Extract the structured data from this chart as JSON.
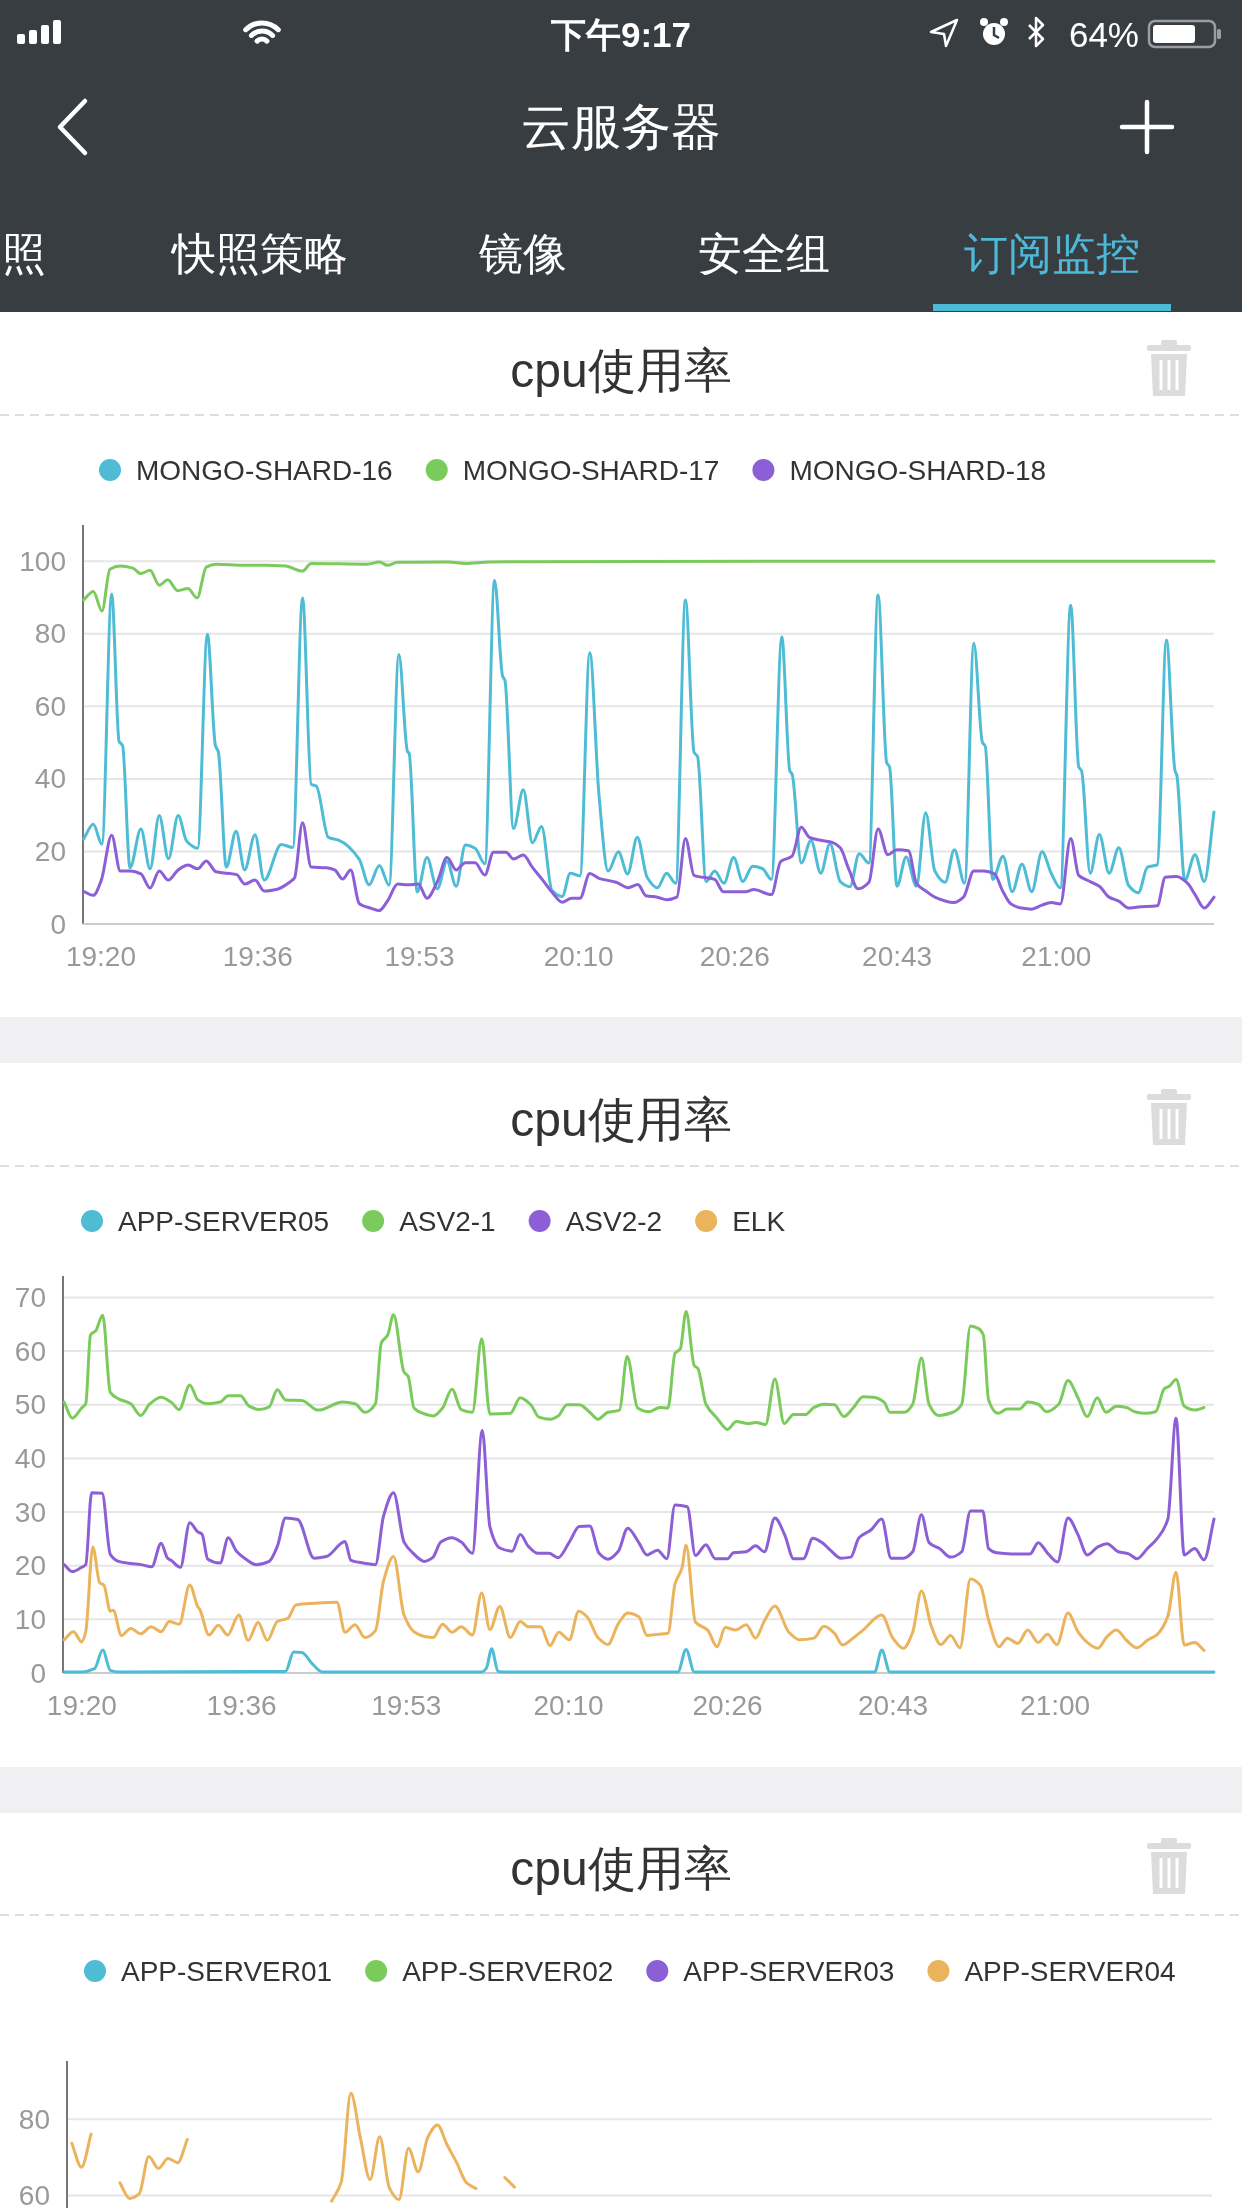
{
  "chart_data": [
    {
      "type": "other",
      "title": "云服务器",
      "annotations": [
        "下午9:17",
        "64%",
        "照",
        "快照策略",
        "镜像",
        "安全组",
        "订阅监控"
      ]
    },
    {
      "type": "line",
      "title": "cpu使用率",
      "legend": "top",
      "grid": "y",
      "xlim": [
        19.302,
        21.275
      ],
      "ylim": [
        0,
        110
      ],
      "yticks": [
        0,
        20,
        40,
        60,
        80,
        100
      ],
      "xticks": [
        {
          "value": 19.3333,
          "label": "19:20"
        },
        {
          "value": 19.6069,
          "label": "19:36"
        },
        {
          "value": 19.8889,
          "label": "19:53"
        },
        {
          "value": 20.1667,
          "label": "20:10"
        },
        {
          "value": 20.4389,
          "label": "20:26"
        },
        {
          "value": 20.7222,
          "label": "20:43"
        },
        {
          "value": 21.0,
          "label": "21:00"
        }
      ],
      "series": [
        {
          "name": "MONGO-SHARD-16",
          "color": "#4fbcd6",
          "x": [
            19.303,
            19.32,
            19.335,
            19.352,
            19.365,
            19.371,
            19.384,
            19.403,
            19.419,
            19.435,
            19.451,
            19.468,
            19.483,
            19.502,
            19.519,
            19.533,
            19.538,
            19.552,
            19.569,
            19.584,
            19.602,
            19.618,
            19.648,
            19.668,
            19.685,
            19.7,
            19.709,
            19.73,
            19.748,
            19.784,
            19.801,
            19.819,
            19.836,
            19.853,
            19.868,
            19.871,
            19.885,
            19.902,
            19.92,
            19.937,
            19.953,
            19.969,
            19.986,
            20.003,
            20.02,
            20.034,
            20.038,
            20.053,
            20.07,
            20.086,
            20.102,
            20.12,
            20.138,
            20.152,
            20.169,
            20.186,
            20.202,
            20.218,
            20.236,
            20.252,
            20.269,
            20.286,
            20.304,
            20.32,
            20.336,
            20.353,
            20.368,
            20.374,
            20.389,
            20.404,
            20.42,
            20.437,
            20.453,
            20.47,
            20.487,
            20.503,
            20.521,
            20.535,
            20.539,
            20.555,
            20.572,
            20.589,
            20.605,
            20.623,
            20.64,
            20.656,
            20.673,
            20.689,
            20.704,
            20.709,
            20.722,
            20.738,
            20.756,
            20.772,
            20.788,
            20.806,
            20.822,
            20.84,
            20.856,
            20.871,
            20.876,
            20.889,
            20.907,
            20.923,
            20.94,
            20.957,
            20.975,
            20.991,
            21.007,
            21.025,
            21.039,
            21.044,
            21.059,
            21.075,
            21.092,
            21.109,
            21.126,
            21.143,
            21.159,
            21.176,
            21.192,
            21.207,
            21.21,
            21.224,
            21.242,
            21.258,
            21.275
          ],
          "values": [
            23.4,
            27.5,
            22.0,
            91.0,
            50.3,
            49.2,
            15.5,
            26.2,
            15.2,
            29.9,
            18.0,
            29.9,
            22.8,
            20.9,
            79.9,
            49.2,
            47.5,
            15.7,
            25.6,
            14.9,
            24.6,
            12.1,
            21.9,
            21.1,
            89.9,
            38.5,
            38.0,
            23.9,
            23.1,
            17.8,
            10.8,
            16.1,
            10.7,
            74.3,
            47.6,
            47.0,
            8.8,
            18.3,
            9.7,
            17.3,
            10.4,
            21.8,
            20.9,
            16.6,
            94.7,
            68.3,
            67.2,
            26.3,
            37.0,
            22.4,
            26.9,
            9.3,
            7.6,
            14.0,
            13.3,
            74.8,
            35.8,
            14.6,
            19.9,
            13.8,
            23.9,
            12.9,
            10.0,
            14.0,
            11.2,
            89.3,
            47.3,
            46.2,
            11.7,
            14.6,
            11.2,
            18.3,
            11.7,
            15.9,
            15.3,
            12.3,
            79.2,
            42.2,
            41.3,
            16.8,
            23.0,
            14.0,
            22.1,
            11.7,
            10.3,
            19.4,
            16.8,
            90.7,
            44.5,
            43.3,
            10.4,
            18.5,
            10.4,
            30.7,
            14.6,
            11.5,
            20.5,
            11.2,
            77.4,
            50.1,
            49.0,
            12.3,
            18.7,
            8.9,
            16.5,
            8.9,
            19.9,
            14.0,
            10.0,
            87.9,
            43.3,
            42.2,
            14.0,
            24.7,
            14.0,
            21.0,
            10.6,
            8.6,
            15.7,
            16.3,
            78.3,
            42.2,
            41.1,
            12.0,
            19.1,
            11.7,
            30.9
          ]
        },
        {
          "name": "MONGO-SHARD-17",
          "color": "#7bcb5c",
          "x": [
            19.303,
            19.32,
            19.335,
            19.349,
            19.367,
            19.389,
            19.403,
            19.419,
            19.435,
            19.45,
            19.467,
            19.485,
            19.501,
            19.517,
            19.534,
            19.584,
            19.62,
            19.655,
            19.685,
            19.7,
            19.798,
            19.819,
            19.833,
            19.851,
            19.94,
            19.969,
            20.011,
            20.083,
            20.6,
            21.275
          ],
          "values": [
            89.3,
            91.7,
            86.3,
            97.8,
            98.7,
            98.1,
            96.6,
            97.5,
            93.4,
            94.9,
            91.9,
            92.5,
            89.9,
            98.4,
            99.2,
            98.9,
            98.9,
            98.7,
            97.3,
            99.4,
            99.2,
            99.8,
            98.9,
            99.7,
            99.8,
            99.4,
            99.8,
            99.9,
            100,
            100
          ]
        },
        {
          "name": "MONGO-SHARD-18",
          "color": "#8c5fd6",
          "x": [
            19.303,
            19.32,
            19.334,
            19.352,
            19.367,
            19.385,
            19.403,
            19.419,
            19.435,
            19.451,
            19.468,
            19.485,
            19.502,
            19.517,
            19.534,
            19.57,
            19.584,
            19.602,
            19.618,
            19.641,
            19.663,
            19.671,
            19.685,
            19.7,
            19.727,
            19.741,
            19.755,
            19.769,
            19.784,
            19.805,
            19.819,
            19.833,
            19.851,
            19.869,
            19.887,
            19.902,
            19.92,
            19.937,
            19.953,
            19.969,
            19.986,
            20.003,
            20.018,
            20.04,
            20.053,
            20.07,
            20.086,
            20.104,
            20.12,
            20.138,
            20.154,
            20.169,
            20.186,
            20.202,
            20.232,
            20.253,
            20.27,
            20.284,
            20.304,
            20.32,
            20.338,
            20.353,
            20.368,
            20.404,
            20.419,
            20.458,
            20.472,
            20.503,
            20.519,
            20.539,
            20.555,
            20.569,
            20.591,
            20.609,
            20.623,
            20.638,
            20.654,
            20.673,
            20.689,
            20.706,
            20.722,
            20.742,
            20.756,
            20.774,
            20.788,
            20.821,
            20.838,
            20.856,
            20.874,
            20.892,
            20.907,
            20.921,
            20.939,
            20.957,
            20.975,
            20.991,
            21.007,
            21.025,
            21.039,
            21.059,
            21.075,
            21.092,
            21.109,
            21.126,
            21.143,
            21.176,
            21.19,
            21.21,
            21.229,
            21.242,
            21.258,
            21.275
          ],
          "values": [
            9.0,
            7.9,
            12.1,
            24.5,
            14.6,
            14.6,
            13.8,
            9.9,
            14.6,
            12.1,
            14.9,
            16.3,
            15.2,
            17.4,
            14.4,
            13.6,
            11.0,
            12.1,
            9.1,
            9.6,
            11.6,
            12.7,
            27.9,
            15.7,
            15.5,
            14.9,
            12.4,
            14.9,
            5.6,
            4.3,
            3.7,
            6.3,
            11.0,
            10.8,
            11.0,
            7.1,
            11.6,
            18.3,
            14.9,
            16.9,
            16.9,
            13.5,
            19.8,
            19.8,
            17.9,
            19.0,
            15.6,
            12.1,
            8.8,
            6.0,
            7.1,
            7.1,
            13.9,
            12.6,
            11.5,
            10.0,
            10.9,
            7.8,
            7.4,
            6.7,
            7.4,
            23.6,
            13.4,
            12.3,
            8.9,
            8.9,
            9.5,
            8.1,
            17.2,
            18.7,
            26.7,
            23.9,
            23.0,
            22.5,
            21.0,
            15.1,
            9.7,
            11.5,
            26.2,
            19.1,
            20.5,
            20.2,
            11.2,
            8.9,
            7.4,
            5.9,
            7.4,
            14.6,
            14.6,
            13.8,
            8.9,
            5.5,
            4.4,
            4.1,
            5.2,
            5.9,
            5.5,
            23.6,
            13.4,
            11.7,
            10.4,
            7.4,
            6.3,
            4.4,
            4.7,
            5.0,
            12.9,
            13.1,
            11.2,
            8.1,
            4.4,
            7.4
          ]
        }
      ]
    },
    {
      "type": "line",
      "title": "cpu使用率",
      "legend": "top",
      "grid": "y",
      "xlim": [
        19.301,
        21.272
      ],
      "ylim": [
        0,
        74
      ],
      "yticks": [
        0,
        10,
        20,
        30,
        40,
        50,
        60,
        70
      ],
      "xticks": [
        {
          "value": 19.3333,
          "label": "19:20"
        },
        {
          "value": 19.6069,
          "label": "19:36"
        },
        {
          "value": 19.8889,
          "label": "19:53"
        },
        {
          "value": 20.1667,
          "label": "20:10"
        },
        {
          "value": 20.4389,
          "label": "20:26"
        },
        {
          "value": 20.7222,
          "label": "20:43"
        },
        {
          "value": 21.0,
          "label": "21:00"
        }
      ],
      "series": [
        {
          "name": "APP-SERVER05",
          "color": "#4fbcd6",
          "x": [
            19.303,
            19.333,
            19.355,
            19.369,
            19.382,
            19.396,
            19.682,
            19.696,
            19.71,
            19.728,
            19.745,
            20.018,
            20.026,
            20.035,
            20.046,
            20.06,
            20.354,
            20.368,
            20.382,
            20.691,
            20.703,
            20.717,
            21.272
          ],
          "values": [
            0.2,
            0.2,
            0.8,
            4.3,
            0.5,
            0.2,
            0.3,
            3.9,
            3.8,
            1.7,
            0.2,
            0.2,
            0.9,
            4.5,
            0.3,
            0.2,
            0.2,
            4.4,
            0.2,
            0.2,
            4.3,
            0.2,
            0.2
          ]
        },
        {
          "name": "ASV2-1",
          "color": "#7bcb5c",
          "x": [
            19.303,
            19.317,
            19.333,
            19.34,
            19.348,
            19.357,
            19.369,
            19.382,
            19.396,
            19.417,
            19.434,
            19.45,
            19.469,
            19.486,
            19.5,
            19.518,
            19.532,
            19.549,
            19.57,
            19.584,
            19.605,
            19.619,
            19.637,
            19.654,
            19.668,
            19.682,
            19.71,
            19.738,
            19.78,
            19.801,
            19.818,
            19.836,
            19.846,
            19.857,
            19.867,
            19.885,
            19.892,
            19.902,
            19.92,
            19.935,
            19.951,
            19.967,
            19.983,
            20.002,
            20.018,
            20.032,
            20.067,
            20.084,
            20.102,
            20.116,
            20.136,
            20.149,
            20.164,
            20.185,
            20.203,
            20.217,
            20.234,
            20.254,
            20.267,
            20.285,
            20.305,
            20.323,
            20.337,
            20.349,
            20.358,
            20.368,
            20.382,
            20.388,
            20.402,
            20.421,
            20.439,
            20.454,
            20.474,
            20.488,
            20.504,
            20.52,
            20.536,
            20.552,
            20.573,
            20.587,
            20.604,
            20.622,
            20.638,
            20.654,
            20.671,
            20.689,
            20.707,
            20.717,
            20.742,
            20.756,
            20.771,
            20.784,
            20.8,
            20.825,
            20.84,
            20.855,
            20.869,
            20.877,
            20.886,
            20.902,
            20.918,
            20.939,
            20.953,
            20.971,
            20.985,
            21.006,
            21.022,
            21.039,
            21.055,
            21.072,
            21.087,
            21.105,
            21.122,
            21.136,
            21.154,
            21.172,
            21.187,
            21.196,
            21.207,
            21.221,
            21.239,
            21.255
          ],
          "values": [
            50.5,
            47.5,
            49.4,
            50.2,
            63.0,
            63.8,
            66.7,
            52.3,
            51.1,
            50.2,
            48.0,
            50.2,
            51.4,
            50.5,
            49.1,
            53.7,
            50.9,
            50.2,
            50.5,
            51.7,
            51.7,
            49.8,
            49.1,
            49.6,
            52.8,
            50.9,
            50.8,
            49.0,
            50.5,
            50.2,
            48.6,
            50.2,
            61.5,
            63.0,
            66.8,
            56.1,
            55.3,
            49.4,
            48.3,
            47.9,
            49.4,
            52.9,
            49.1,
            48.6,
            62.3,
            48.3,
            48.4,
            51.3,
            50.0,
            47.7,
            47.3,
            47.9,
            50.0,
            50.0,
            48.6,
            47.3,
            48.6,
            49.0,
            59.0,
            49.4,
            48.7,
            49.5,
            49.4,
            59.6,
            60.4,
            67.4,
            57.3,
            56.8,
            50.1,
            47.5,
            45.4,
            46.9,
            46.5,
            46.7,
            46.3,
            54.8,
            46.5,
            48.2,
            48.2,
            49.5,
            50.1,
            50.0,
            47.8,
            49.4,
            51.5,
            51.4,
            50.5,
            48.6,
            48.6,
            50.1,
            58.7,
            50.1,
            48.0,
            48.6,
            50.1,
            64.7,
            64.2,
            63.0,
            50.9,
            48.4,
            49.2,
            49.2,
            50.5,
            50.1,
            48.7,
            50.1,
            54.5,
            51.3,
            47.8,
            51.3,
            48.6,
            49.7,
            49.5,
            48.7,
            48.4,
            48.7,
            53.0,
            53.5,
            54.7,
            49.7,
            49.0,
            49.5
          ]
        },
        {
          "name": "ASV2-2",
          "color": "#8c5fd6",
          "x": [
            19.303,
            19.317,
            19.333,
            19.34,
            19.35,
            19.368,
            19.382,
            19.396,
            19.417,
            19.434,
            19.453,
            19.469,
            19.48,
            19.486,
            19.502,
            19.518,
            19.532,
            19.539,
            19.549,
            19.57,
            19.584,
            19.598,
            19.612,
            19.632,
            19.654,
            19.668,
            19.682,
            19.703,
            19.731,
            19.752,
            19.784,
            19.794,
            19.815,
            19.836,
            19.85,
            19.867,
            19.885,
            19.899,
            19.92,
            19.934,
            19.948,
            19.967,
            19.983,
            20.002,
            20.019,
            20.032,
            20.049,
            20.07,
            20.084,
            20.098,
            20.114,
            20.133,
            20.149,
            20.168,
            20.185,
            20.203,
            20.219,
            20.234,
            20.252,
            20.268,
            20.287,
            20.301,
            20.319,
            20.335,
            20.349,
            20.37,
            20.384,
            20.402,
            20.418,
            20.439,
            20.449,
            20.471,
            20.487,
            20.502,
            20.52,
            20.537,
            20.552,
            20.569,
            20.585,
            20.601,
            20.615,
            20.633,
            20.65,
            20.664,
            20.685,
            20.703,
            20.719,
            20.74,
            20.756,
            20.771,
            20.784,
            20.802,
            20.821,
            20.84,
            20.855,
            20.876,
            20.886,
            20.9,
            20.925,
            20.957,
            20.971,
            20.988,
            21.004,
            21.022,
            21.039,
            21.055,
            21.073,
            21.089,
            21.108,
            21.126,
            21.14,
            21.158,
            21.175,
            21.193,
            21.207,
            21.221,
            21.239,
            21.255,
            21.272
          ],
          "values": [
            20.2,
            18.9,
            19.7,
            20.2,
            33.6,
            33.5,
            22.1,
            20.8,
            20.4,
            20.2,
            19.8,
            24.2,
            21.4,
            21.0,
            19.7,
            28.0,
            26.3,
            25.9,
            21.2,
            20.5,
            25.2,
            22.7,
            21.4,
            20.2,
            20.8,
            23.6,
            28.9,
            28.6,
            21.4,
            21.7,
            24.5,
            21.0,
            20.5,
            20.2,
            29.3,
            33.6,
            24.4,
            22.5,
            20.8,
            21.5,
            24.4,
            25.2,
            24.4,
            22.3,
            45.2,
            27.3,
            23.3,
            22.7,
            25.8,
            23.6,
            22.3,
            22.3,
            21.5,
            24.4,
            27.3,
            27.4,
            22.3,
            21.2,
            22.7,
            27.0,
            24.3,
            22.0,
            22.9,
            21.3,
            31.3,
            31.0,
            21.9,
            23.9,
            21.3,
            21.3,
            22.4,
            22.6,
            23.7,
            22.6,
            28.9,
            25.7,
            21.3,
            21.3,
            25.1,
            24.3,
            22.9,
            21.4,
            21.6,
            25.2,
            26.7,
            28.7,
            21.4,
            21.4,
            22.6,
            29.5,
            24.3,
            23.2,
            21.6,
            22.6,
            30.2,
            30.2,
            23.2,
            22.4,
            22.2,
            22.2,
            24.3,
            22.2,
            20.7,
            28.9,
            25.8,
            22.0,
            23.5,
            24.1,
            22.6,
            22.2,
            21.3,
            23.2,
            25.1,
            28.7,
            47.5,
            22.0,
            23.2,
            21.1,
            28.7
          ]
        },
        {
          "name": "ELK",
          "color": "#ebb35c",
          "x": [
            19.303,
            19.319,
            19.333,
            19.34,
            19.352,
            19.364,
            19.371,
            19.382,
            19.387,
            19.401,
            19.417,
            19.434,
            19.452,
            19.469,
            19.483,
            19.5,
            19.518,
            19.532,
            19.535,
            19.551,
            19.567,
            19.583,
            19.602,
            19.618,
            19.635,
            19.651,
            19.668,
            19.686,
            19.7,
            19.731,
            19.77,
            19.784,
            19.801,
            19.818,
            19.836,
            19.85,
            19.867,
            19.885,
            19.902,
            19.92,
            19.935,
            19.951,
            19.967,
            19.983,
            20.002,
            20.018,
            20.032,
            20.049,
            20.067,
            20.084,
            20.098,
            20.119,
            20.135,
            20.15,
            20.168,
            20.184,
            20.199,
            20.217,
            20.234,
            20.252,
            20.268,
            20.287,
            20.301,
            20.319,
            20.337,
            20.349,
            20.361,
            20.368,
            20.384,
            20.405,
            20.421,
            20.435,
            20.453,
            20.471,
            20.487,
            20.502,
            20.52,
            20.544,
            20.562,
            20.587,
            20.604,
            20.622,
            20.636,
            20.654,
            20.671,
            20.703,
            20.722,
            20.74,
            20.756,
            20.771,
            20.788,
            20.804,
            20.821,
            20.837,
            20.855,
            20.872,
            20.886,
            20.904,
            20.918,
            20.936,
            20.953,
            20.971,
            20.987,
            21.003,
            21.022,
            21.039,
            21.055,
            21.073,
            21.089,
            21.105,
            21.122,
            21.14,
            21.158,
            21.175,
            21.193,
            21.207,
            21.221,
            21.239,
            21.255
          ],
          "values": [
            6.2,
            7.7,
            5.8,
            7.7,
            23.5,
            16.8,
            16.4,
            11.5,
            11.7,
            7.0,
            8.3,
            7.3,
            8.6,
            7.7,
            9.6,
            9.1,
            16.4,
            12.3,
            11.9,
            7.1,
            8.9,
            7.1,
            10.8,
            6.1,
            9.4,
            6.1,
            9.6,
            10.2,
            12.7,
            13.0,
            13.2,
            7.6,
            9.0,
            6.6,
            7.9,
            17.2,
            21.7,
            10.8,
            7.7,
            6.8,
            6.6,
            9.1,
            7.6,
            8.6,
            7.1,
            14.9,
            8.1,
            12.4,
            6.6,
            9.6,
            8.6,
            8.6,
            5.1,
            7.6,
            6.2,
            11.5,
            10.4,
            6.6,
            5.3,
            9.2,
            11.2,
            10.5,
            7.0,
            7.2,
            7.4,
            16.6,
            19.6,
            23.8,
            9.5,
            8.0,
            4.9,
            8.5,
            8.0,
            9.0,
            6.5,
            9.7,
            12.5,
            7.6,
            6.2,
            6.5,
            8.7,
            7.4,
            5.2,
            6.5,
            8.0,
            10.8,
            6.5,
            4.6,
            7.6,
            15.3,
            8.7,
            5.3,
            7.0,
            4.7,
            17.5,
            16.3,
            9.9,
            4.9,
            6.5,
            5.5,
            8.0,
            5.7,
            7.2,
            5.3,
            11.2,
            7.7,
            5.7,
            4.6,
            6.8,
            8.0,
            6.1,
            4.7,
            6.1,
            7.2,
            10.6,
            18.8,
            5.2,
            5.7,
            4.2
          ]
        }
      ]
    },
    {
      "type": "line",
      "title": "cpu使用率",
      "legend": "top",
      "grid": "y",
      "tick_labels": "y",
      "ylim": [
        56.7,
        95.3
      ],
      "yticks": [
        60,
        80
      ],
      "categories": [
        null,
        null,
        null,
        null,
        null,
        null,
        null,
        null,
        null,
        null,
        null,
        null,
        null,
        null,
        null,
        null,
        null,
        null,
        null,
        null,
        null,
        null,
        null,
        null,
        null,
        null,
        null,
        null,
        null,
        null,
        null,
        null,
        null,
        null,
        null,
        null,
        null,
        null,
        null,
        null,
        null,
        null,
        null,
        null,
        null,
        null,
        null,
        null,
        null,
        null,
        null,
        null,
        null,
        null,
        null,
        null,
        null,
        null,
        null,
        null,
        null,
        null,
        null,
        null,
        null,
        null,
        null,
        null,
        null,
        null,
        null,
        null,
        null,
        null,
        null,
        null,
        null,
        null,
        null,
        null,
        null,
        null,
        null,
        null,
        null,
        null,
        null,
        null,
        null,
        null,
        null,
        null,
        null,
        null,
        null,
        null,
        null,
        null,
        null,
        null,
        null,
        null,
        null,
        null,
        null,
        null,
        null,
        null,
        null,
        null,
        null,
        null,
        null,
        null,
        null,
        null,
        null,
        null,
        null
      ],
      "series": [
        {
          "name": "APP-SERVER01",
          "color": "#4fbcd6",
          "values": [
            null,
            null,
            null,
            null,
            null,
            null,
            null,
            null,
            null,
            null,
            null,
            null,
            null,
            null,
            null,
            null,
            null,
            null,
            null,
            null,
            null,
            null,
            null,
            null,
            null,
            null,
            null,
            null,
            null,
            null,
            null,
            null,
            null,
            null,
            null,
            null,
            null,
            null,
            null,
            null,
            null,
            null,
            null,
            null,
            null,
            null,
            null,
            null,
            null,
            null,
            null,
            null,
            null,
            null,
            null,
            null,
            null,
            null,
            null,
            null,
            null,
            null,
            null,
            null,
            null,
            null,
            null,
            null,
            null,
            null,
            null,
            null,
            null,
            null,
            null,
            null,
            null,
            null,
            null,
            null,
            null,
            null,
            null,
            null,
            null,
            null,
            null,
            null,
            null,
            null,
            null,
            null,
            null,
            null,
            null,
            null,
            null,
            null,
            null,
            null,
            null,
            null,
            null,
            null,
            null,
            null,
            null,
            null,
            null,
            null,
            null,
            null,
            null,
            null,
            null,
            null,
            null,
            null,
            null
          ]
        },
        {
          "name": "APP-SERVER02",
          "color": "#7bcb5c",
          "values": [
            null,
            null,
            null,
            null,
            null,
            null,
            null,
            null,
            null,
            null,
            null,
            null,
            null,
            null,
            null,
            null,
            null,
            null,
            null,
            null,
            null,
            null,
            null,
            null,
            null,
            null,
            null,
            null,
            null,
            null,
            null,
            null,
            null,
            null,
            null,
            null,
            null,
            null,
            null,
            null,
            null,
            null,
            null,
            null,
            null,
            null,
            null,
            null,
            null,
            null,
            null,
            null,
            null,
            null,
            null,
            null,
            null,
            null,
            null,
            null,
            null,
            null,
            null,
            null,
            null,
            null,
            null,
            null,
            null,
            null,
            null,
            null,
            null,
            null,
            null,
            null,
            null,
            null,
            null,
            null,
            null,
            null,
            null,
            null,
            null,
            null,
            null,
            null,
            null,
            null,
            null,
            null,
            null,
            null,
            null,
            null,
            null,
            null,
            null,
            null,
            null,
            null,
            null,
            null,
            null,
            null,
            null,
            null,
            null,
            null,
            null,
            null,
            null,
            null,
            null,
            null,
            null,
            null,
            null
          ]
        },
        {
          "name": "APP-SERVER03",
          "color": "#8c5fd6",
          "values": [
            null,
            null,
            null,
            null,
            null,
            null,
            null,
            null,
            null,
            null,
            null,
            null,
            null,
            null,
            null,
            null,
            null,
            null,
            null,
            null,
            null,
            null,
            null,
            null,
            null,
            null,
            null,
            null,
            null,
            null,
            null,
            null,
            null,
            null,
            null,
            null,
            null,
            null,
            null,
            null,
            null,
            null,
            null,
            null,
            null,
            null,
            null,
            null,
            null,
            null,
            null,
            null,
            null,
            null,
            null,
            null,
            null,
            null,
            null,
            null,
            null,
            null,
            null,
            null,
            null,
            null,
            null,
            null,
            null,
            null,
            null,
            null,
            null,
            null,
            null,
            null,
            null,
            null,
            null,
            null,
            null,
            null,
            null,
            null,
            null,
            null,
            null,
            null,
            null,
            null,
            null,
            null,
            null,
            null,
            null,
            null,
            null,
            null,
            null,
            null,
            null,
            null,
            null,
            null,
            null,
            null,
            null,
            null,
            null,
            null,
            null,
            null,
            null,
            null,
            null,
            null,
            null,
            null,
            null
          ]
        },
        {
          "name": "APP-SERVER04",
          "color": "#ebb35c",
          "values": [
            73.7,
            67.4,
            76.1,
            null,
            null,
            63.3,
            59.2,
            60.4,
            70.2,
            67.1,
            69.7,
            68.6,
            74.7,
            null,
            null,
            null,
            null,
            null,
            null,
            null,
            null,
            null,
            null,
            null,
            null,
            null,
            null,
            58.5,
            63.5,
            86.8,
            75.0,
            64.2,
            75.4,
            62.0,
            58.9,
            72.4,
            66.2,
            75.3,
            78.5,
            73.3,
            68.6,
            63.4,
            61.8,
            null,
            null,
            64.7,
            62.2,
            null,
            null,
            null,
            null,
            null,
            null,
            null,
            null,
            null,
            null,
            null,
            null,
            null,
            null,
            null,
            null,
            null,
            null,
            null,
            null,
            null,
            null,
            null,
            null,
            null,
            null,
            null,
            null,
            null,
            null,
            null,
            null,
            null,
            null,
            null,
            null,
            null,
            null,
            null,
            null,
            null,
            null,
            null,
            null,
            null,
            null,
            null,
            null,
            null,
            null,
            null,
            null,
            null,
            null,
            null,
            null,
            null,
            null,
            null,
            null,
            null,
            null,
            null,
            null,
            null,
            null,
            null,
            null,
            null,
            null,
            null,
            null
          ]
        }
      ]
    }
  ]
}
